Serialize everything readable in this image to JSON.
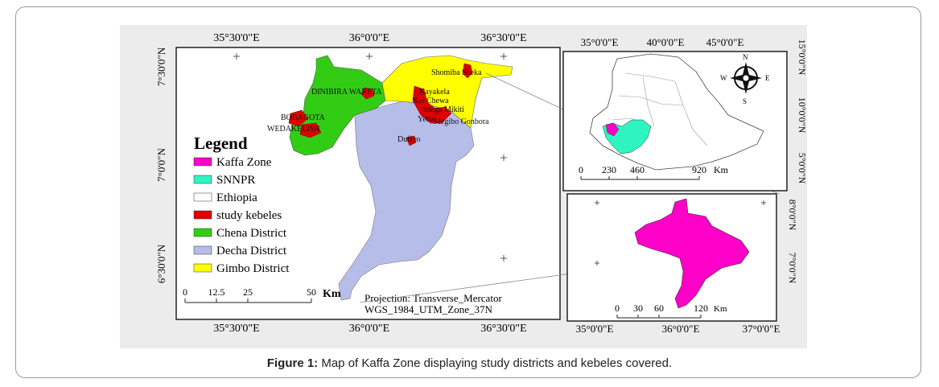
{
  "caption": {
    "label": "Figure 1:",
    "text": "Map of Kaffa Zone displaying study districts and kebeles covered."
  },
  "main_map": {
    "top_lon_labels": [
      "35°30'0\"E",
      "36°0'0\"E",
      "36°30'0\"E"
    ],
    "bottom_lon_labels": [
      "35°30'0\"E",
      "36°0'0\"E",
      "36°30'0\"E"
    ],
    "lat_labels": [
      "7°30'0\"N",
      "7°0'0\"N",
      "6°30'0\"N"
    ],
    "kebele_labels": [
      "Shomiba Sheka",
      "DINIBIRA WARETA",
      "Kayakela",
      "Kei Chewa",
      "Shaga Mikiti",
      "Yeba",
      "Megibo Gonbora",
      "BOBAGOTA",
      "WEDAKELISH",
      "Dufiyo"
    ],
    "scale": {
      "ticks": [
        "0",
        "12.5",
        "25",
        "50"
      ],
      "unit": "Km"
    },
    "projection": [
      "Projection: Transverse_Mercator",
      "WGS_1984_UTM_Zone_37N"
    ],
    "district_colors": {
      "chena": "#33cc14",
      "decha": "#b6bde8",
      "gimbo": "#ffff00",
      "kebele": "#e00000"
    }
  },
  "legend": {
    "title": "Legend",
    "items": [
      {
        "label": "Kaffa Zone",
        "color": "#ff00c8"
      },
      {
        "label": "SNNPR",
        "color": "#2ef5c0"
      },
      {
        "label": "Ethiopia",
        "color": "#ffffff"
      },
      {
        "label": "study kebeles",
        "color": "#e00000"
      },
      {
        "label": "Chena District",
        "color": "#33cc14"
      },
      {
        "label": "Decha District",
        "color": "#b6bde8"
      },
      {
        "label": "Gimbo District",
        "color": "#ffff00"
      }
    ]
  },
  "inset_ethiopia": {
    "top_lon_labels": [
      "35°0'0\"E",
      "40°0'0\"E",
      "45°0'0\"E"
    ],
    "lat_labels": [
      "15°0'0\"N",
      "10°0'0\"N",
      "5°0'0\"N"
    ],
    "scale": {
      "ticks": [
        "0",
        "230",
        "460",
        "920"
      ],
      "unit": "Km"
    },
    "compass": {
      "n": "N",
      "s": "S",
      "e": "E",
      "w": "W"
    }
  },
  "inset_kaffa": {
    "bottom_lon_labels": [
      "35°0'0\"E",
      "36°0'0\"E",
      "37°0'0\"E"
    ],
    "lat_labels": [
      "8°0'0\"N",
      "7°0'0\"N"
    ],
    "scale": {
      "ticks": [
        "0",
        "30",
        "60",
        "120"
      ],
      "unit": "Km"
    }
  }
}
